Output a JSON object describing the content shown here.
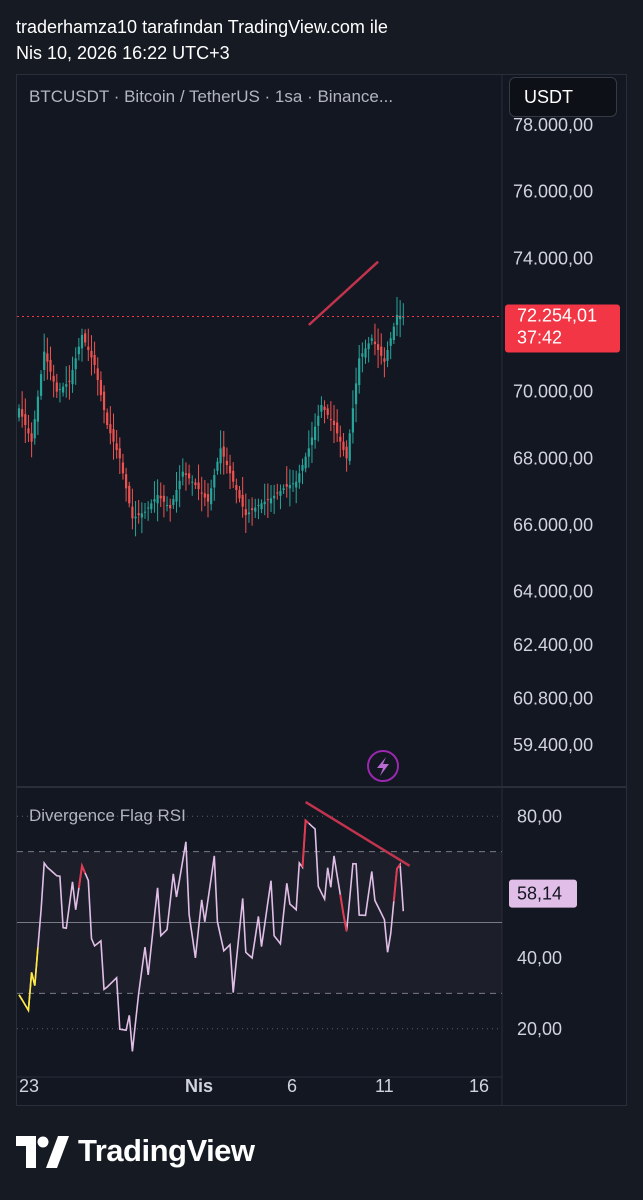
{
  "header": {
    "line1": "traderhamza10 tarafından TradingView.com ile",
    "line2": "Nis 10, 2026 16:22 UTC+3"
  },
  "chart": {
    "symbol": "BTCUSDT · Bitcoin / TetherUS · 1sa · Binance...",
    "currency_button": "USDT",
    "last_price": "72.254,01",
    "countdown": "37:42",
    "lightning_icon": "lightning-icon"
  },
  "footer": {
    "brand": "TradingView"
  },
  "colors": {
    "up": "#26a69a",
    "down": "#ef5350",
    "price_tag": "#f23645",
    "trendline": "#c2334d",
    "rsi": "#e1bee7",
    "rsi_yellow": "#ffeb3b",
    "rsi_red": "#e03b52"
  },
  "chart_data": [
    {
      "type": "candlestick",
      "interval": "1sa",
      "ylim": [
        58800,
        78000
      ],
      "y_ticks": [
        "78.000,00",
        "76.000,00",
        "74.000,00",
        "70.000,00",
        "68.000,00",
        "66.000,00",
        "64.000,00",
        "62.400,00",
        "60.800,00",
        "59.400,00"
      ],
      "x_ticks": [
        "23",
        "Nis",
        "6",
        "11",
        "16"
      ],
      "last_price": 72254.01,
      "path_anchors": [
        {
          "i": 0,
          "v": 69500
        },
        {
          "i": 4,
          "v": 68500
        },
        {
          "i": 8,
          "v": 71200
        },
        {
          "i": 12,
          "v": 70000
        },
        {
          "i": 16,
          "v": 70300
        },
        {
          "i": 20,
          "v": 71700
        },
        {
          "i": 24,
          "v": 70800
        },
        {
          "i": 28,
          "v": 69000
        },
        {
          "i": 32,
          "v": 68000
        },
        {
          "i": 36,
          "v": 66200
        },
        {
          "i": 40,
          "v": 66400
        },
        {
          "i": 44,
          "v": 66900
        },
        {
          "i": 48,
          "v": 66500
        },
        {
          "i": 52,
          "v": 67600
        },
        {
          "i": 56,
          "v": 67200
        },
        {
          "i": 60,
          "v": 66700
        },
        {
          "i": 64,
          "v": 68300
        },
        {
          "i": 68,
          "v": 67300
        },
        {
          "i": 72,
          "v": 66300
        },
        {
          "i": 76,
          "v": 66600
        },
        {
          "i": 80,
          "v": 66800
        },
        {
          "i": 84,
          "v": 67100
        },
        {
          "i": 88,
          "v": 67300
        },
        {
          "i": 92,
          "v": 68300
        },
        {
          "i": 96,
          "v": 69600
        },
        {
          "i": 100,
          "v": 69000
        },
        {
          "i": 104,
          "v": 68000
        },
        {
          "i": 108,
          "v": 71000
        },
        {
          "i": 112,
          "v": 71600
        },
        {
          "i": 116,
          "v": 70900
        },
        {
          "i": 120,
          "v": 72300
        },
        {
          "i": 122,
          "v": 72254
        }
      ],
      "trendline": {
        "from": {
          "i": 92,
          "v": 72000
        },
        "to": {
          "i": 114,
          "v": 73900
        }
      }
    },
    {
      "type": "line",
      "title": "Divergence Flag RSI",
      "ylim": [
        14,
        86
      ],
      "y_ticks": [
        "80,00",
        "40,00",
        "20,00"
      ],
      "bands": [
        70,
        30
      ],
      "midline": 50,
      "last_value": "58,14",
      "path_anchors": [
        {
          "i": 0,
          "v": 36
        },
        {
          "i": 3,
          "v": 22
        },
        {
          "i": 7,
          "v": 52
        },
        {
          "i": 9,
          "v": 72
        },
        {
          "i": 12,
          "v": 60
        },
        {
          "i": 15,
          "v": 50
        },
        {
          "i": 18,
          "v": 60
        },
        {
          "i": 20,
          "v": 66
        },
        {
          "i": 24,
          "v": 45
        },
        {
          "i": 28,
          "v": 35
        },
        {
          "i": 31,
          "v": 28
        },
        {
          "i": 34,
          "v": 18
        },
        {
          "i": 36,
          "v": 20
        },
        {
          "i": 38,
          "v": 30
        },
        {
          "i": 41,
          "v": 40
        },
        {
          "i": 44,
          "v": 55
        },
        {
          "i": 47,
          "v": 48
        },
        {
          "i": 50,
          "v": 62
        },
        {
          "i": 53,
          "v": 68
        },
        {
          "i": 56,
          "v": 40
        },
        {
          "i": 59,
          "v": 55
        },
        {
          "i": 62,
          "v": 64
        },
        {
          "i": 65,
          "v": 42
        },
        {
          "i": 68,
          "v": 35
        },
        {
          "i": 71,
          "v": 52
        },
        {
          "i": 74,
          "v": 40
        },
        {
          "i": 77,
          "v": 48
        },
        {
          "i": 80,
          "v": 57
        },
        {
          "i": 83,
          "v": 44
        },
        {
          "i": 86,
          "v": 60
        },
        {
          "i": 88,
          "v": 52
        },
        {
          "i": 91,
          "v": 82
        },
        {
          "i": 94,
          "v": 70
        },
        {
          "i": 97,
          "v": 55
        },
        {
          "i": 100,
          "v": 72
        },
        {
          "i": 103,
          "v": 46
        },
        {
          "i": 106,
          "v": 65
        },
        {
          "i": 110,
          "v": 52
        },
        {
          "i": 113,
          "v": 61
        },
        {
          "i": 116,
          "v": 46
        },
        {
          "i": 118,
          "v": 50
        },
        {
          "i": 120,
          "v": 62
        },
        {
          "i": 122,
          "v": 58
        }
      ],
      "trendline": {
        "from": {
          "i": 91,
          "v": 84
        },
        "to": {
          "i": 124,
          "v": 66
        }
      }
    }
  ]
}
